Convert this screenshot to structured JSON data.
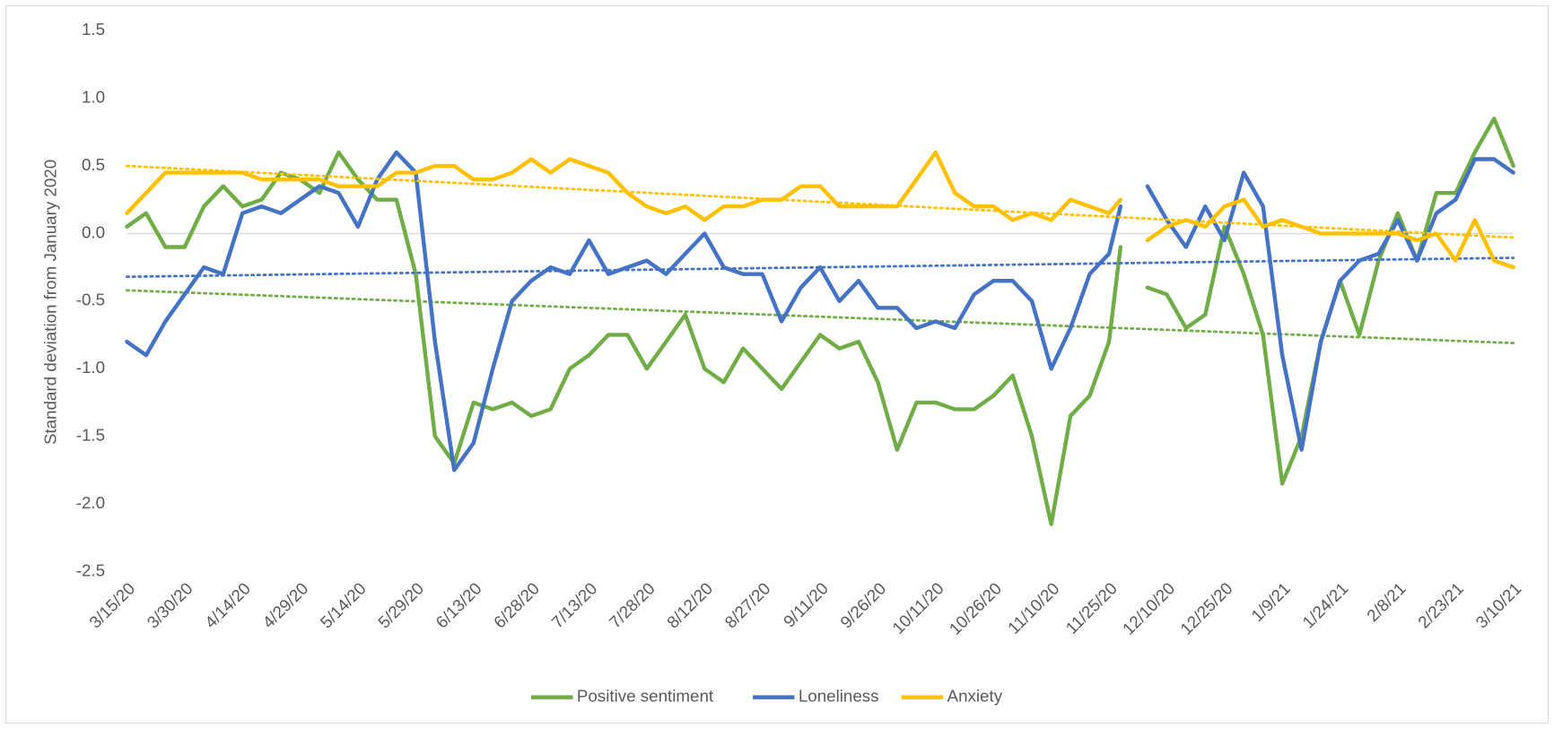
{
  "chart_data": {
    "type": "line",
    "y_label": "Standard deviation from January 2020",
    "x": [
      "3/15/20",
      "3/20/20",
      "3/25/20",
      "3/30/20",
      "4/4/20",
      "4/9/20",
      "4/14/20",
      "4/19/20",
      "4/24/20",
      "4/29/20",
      "5/4/20",
      "5/9/20",
      "5/14/20",
      "5/19/20",
      "5/24/20",
      "5/29/20",
      "6/3/20",
      "6/8/20",
      "6/13/20",
      "6/18/20",
      "6/23/20",
      "6/28/20",
      "7/3/20",
      "7/8/20",
      "7/13/20",
      "7/18/20",
      "7/23/20",
      "7/28/20",
      "8/2/20",
      "8/7/20",
      "8/12/20",
      "8/17/20",
      "8/22/20",
      "8/27/20",
      "9/1/20",
      "9/6/20",
      "9/11/20",
      "9/16/20",
      "9/21/20",
      "9/26/20",
      "10/1/20",
      "10/6/20",
      "10/11/20",
      "10/16/20",
      "10/21/20",
      "10/26/20",
      "10/31/20",
      "11/5/20",
      "11/10/20",
      "11/15/20",
      "11/20/20",
      "11/25/20",
      "11/28/20",
      "12/2/20",
      "12/5/20",
      "12/10/20",
      "12/15/20",
      "12/20/20",
      "12/25/20",
      "12/30/20",
      "1/4/21",
      "1/9/21",
      "1/14/21",
      "1/19/21",
      "1/24/21",
      "1/29/21",
      "2/3/21",
      "2/8/21",
      "2/13/21",
      "2/18/21",
      "2/23/21",
      "2/28/21",
      "3/5/21",
      "3/10/21"
    ],
    "xlim": [
      "3/15/20",
      "3/10/21"
    ],
    "xticks": [
      "3/15/20",
      "3/30/20",
      "4/14/20",
      "4/29/20",
      "5/14/20",
      "5/29/20",
      "6/13/20",
      "6/28/20",
      "7/13/20",
      "7/28/20",
      "8/12/20",
      "8/27/20",
      "9/11/20",
      "9/26/20",
      "10/11/20",
      "10/26/20",
      "11/10/20",
      "11/25/20",
      "12/10/20",
      "12/25/20",
      "1/9/21",
      "1/24/21",
      "2/8/21",
      "2/23/21",
      "3/10/21"
    ],
    "ylim": [
      -2.5,
      1.5
    ],
    "yticks": [
      {
        "value": -2.5,
        "label": "-2.5"
      },
      {
        "value": -2,
        "label": "-2.0"
      },
      {
        "value": -1.5,
        "label": "-1.5"
      },
      {
        "value": -1,
        "label": "-1.0"
      },
      {
        "value": -0.5,
        "label": "-0.5"
      },
      {
        "value": 0,
        "label": "0.0"
      },
      {
        "value": 0.5,
        "label": "0.5"
      },
      {
        "value": 1,
        "label": "1.0"
      },
      {
        "value": 1.5,
        "label": "1.5"
      }
    ],
    "legend": "bottom",
    "series": [
      {
        "name": "Positive sentiment",
        "color": "#70ad47",
        "trend": [
          -0.42,
          -0.81
        ],
        "values": [
          0.05,
          0.15,
          -0.1,
          -0.1,
          0.2,
          0.35,
          0.2,
          0.25,
          0.45,
          0.4,
          0.3,
          0.6,
          0.4,
          0.25,
          0.25,
          -0.3,
          -1.5,
          -1.7,
          -1.25,
          -1.3,
          -1.25,
          -1.35,
          -1.3,
          -1.0,
          -0.9,
          -0.75,
          -0.75,
          -1.0,
          -0.8,
          -0.6,
          -1.0,
          -1.1,
          -0.85,
          -1.0,
          -1.15,
          -0.95,
          -0.75,
          -0.85,
          -0.8,
          -1.1,
          -1.6,
          -1.25,
          -1.25,
          -1.3,
          -1.3,
          -1.2,
          -1.05,
          -1.5,
          -2.15,
          -1.35,
          -1.2,
          -0.8,
          -0.1,
          null,
          -0.4,
          -0.45,
          -0.7,
          -0.6,
          0.05,
          -0.3,
          -0.75,
          -1.85,
          -1.5,
          -0.8,
          -0.35,
          -0.75,
          -0.2,
          0.15,
          -0.2,
          0.3,
          0.3,
          0.6,
          0.85,
          0.5
        ]
      },
      {
        "name": "Loneliness",
        "color": "#4472c4",
        "trend": [
          -0.32,
          -0.18
        ],
        "values": [
          -0.8,
          -0.9,
          -0.65,
          -0.45,
          -0.25,
          -0.3,
          0.15,
          0.2,
          0.15,
          0.25,
          0.35,
          0.3,
          0.05,
          0.4,
          0.6,
          0.45,
          -0.8,
          -1.75,
          -1.55,
          -1.0,
          -0.5,
          -0.35,
          -0.25,
          -0.3,
          -0.05,
          -0.3,
          -0.25,
          -0.2,
          -0.3,
          -0.15,
          0.0,
          -0.25,
          -0.3,
          -0.3,
          -0.65,
          -0.4,
          -0.25,
          -0.5,
          -0.35,
          -0.55,
          -0.55,
          -0.7,
          -0.65,
          -0.7,
          -0.45,
          -0.35,
          -0.35,
          -0.5,
          -1.0,
          -0.7,
          -0.3,
          -0.15,
          0.2,
          null,
          0.35,
          0.1,
          -0.1,
          0.2,
          -0.05,
          0.45,
          0.2,
          -0.9,
          -1.6,
          -0.8,
          -0.35,
          -0.2,
          -0.15,
          0.1,
          -0.2,
          0.15,
          0.25,
          0.55,
          0.55,
          0.45
        ]
      },
      {
        "name": "Anxiety",
        "color": "#ffc000",
        "trend": [
          0.5,
          -0.03
        ],
        "values": [
          0.15,
          0.3,
          0.45,
          0.45,
          0.45,
          0.45,
          0.45,
          0.4,
          0.4,
          0.4,
          0.4,
          0.35,
          0.35,
          0.35,
          0.45,
          0.45,
          0.5,
          0.5,
          0.4,
          0.4,
          0.45,
          0.55,
          0.45,
          0.55,
          0.5,
          0.45,
          0.3,
          0.2,
          0.15,
          0.2,
          0.1,
          0.2,
          0.2,
          0.25,
          0.25,
          0.35,
          0.35,
          0.2,
          0.2,
          0.2,
          0.2,
          0.4,
          0.6,
          0.3,
          0.2,
          0.2,
          0.1,
          0.15,
          0.1,
          0.25,
          0.2,
          0.15,
          0.25,
          null,
          -0.05,
          0.05,
          0.1,
          0.05,
          0.2,
          0.25,
          0.05,
          0.1,
          0.05,
          0.0,
          0.0,
          0.0,
          0.0,
          0.0,
          -0.05,
          0.0,
          -0.2,
          0.1,
          -0.2,
          -0.25
        ]
      }
    ]
  }
}
